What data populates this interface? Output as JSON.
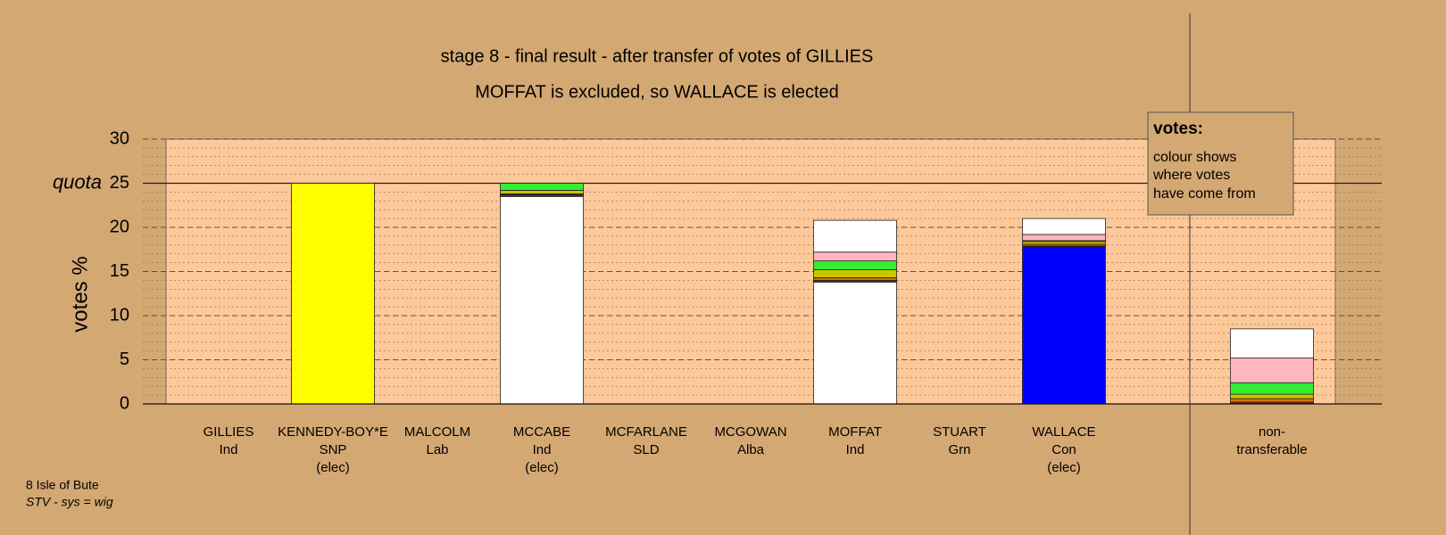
{
  "chart_data": {
    "type": "stacked-bar",
    "title": "stage 8 - final result - after transfer of votes of GILLIES",
    "subtitle": "MOFFAT is excluded, so WALLACE is elected",
    "y_label": "votes %",
    "labels": [
      [
        "GILLIES",
        "Ind"
      ],
      [
        "KENNEDY-BOY*E",
        "SNP",
        "(elec)"
      ],
      [
        "MALCOLM",
        "Lab"
      ],
      [
        "MCCABE",
        "Ind",
        "(elec)"
      ],
      [
        "MCFARLANE",
        "SLD"
      ],
      [
        "MCGOWAN",
        "Alba"
      ],
      [
        "MOFFAT",
        "Ind"
      ],
      [
        "STUART",
        "Grn"
      ],
      [
        "WALLACE",
        "Con",
        "(elec)"
      ],
      [
        "non-",
        "transferable"
      ]
    ],
    "series": [
      {
        "color": "#ffffff",
        "values": [
          null,
          null,
          null,
          23.5,
          null,
          null,
          13.8,
          null,
          null,
          null
        ]
      },
      {
        "color": "#ffff00",
        "values": [
          null,
          25,
          null,
          null,
          null,
          null,
          null,
          null,
          null,
          null
        ]
      },
      {
        "color": "#0000ff",
        "values": [
          null,
          null,
          null,
          null,
          null,
          null,
          null,
          null,
          17.8,
          null
        ]
      },
      {
        "color": "#8b1a1a",
        "values": [
          null,
          null,
          null,
          0.2,
          null,
          null,
          0.2,
          null,
          0.1,
          0.2
        ]
      },
      {
        "color": "#e07000",
        "values": [
          null,
          null,
          null,
          0.1,
          null,
          null,
          0.3,
          null,
          0.2,
          0.4
        ]
      },
      {
        "color": "#c8c800",
        "values": [
          null,
          null,
          null,
          0.4,
          null,
          null,
          0.9,
          null,
          0.3,
          0.5
        ]
      },
      {
        "color": "#33ee33",
        "values": [
          null,
          null,
          null,
          0.8,
          null,
          null,
          1.0,
          null,
          0.1,
          1.3
        ]
      },
      {
        "color": "#ffb6c1",
        "values": [
          null,
          null,
          null,
          null,
          null,
          null,
          1.0,
          null,
          0.7,
          2.8
        ]
      },
      {
        "color": "#ffffff",
        "values": [
          null,
          null,
          null,
          null,
          null,
          null,
          3.6,
          null,
          1.8,
          3.3
        ]
      }
    ],
    "ylim": [
      0,
      30
    ],
    "yticks": [
      0,
      5,
      10,
      15,
      20,
      25,
      30
    ],
    "grid": true,
    "minor_grid_step": 1,
    "quota": {
      "value": 25,
      "label": "quota"
    },
    "legend": {
      "heading": "votes:",
      "lines": [
        "colour shows",
        "where votes",
        "have come from"
      ]
    },
    "footnote": [
      "8 Isle of Bute",
      "STV - sys = wig"
    ]
  }
}
